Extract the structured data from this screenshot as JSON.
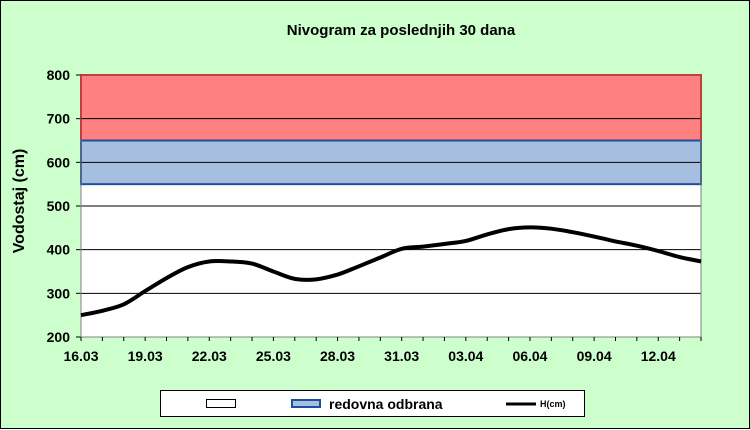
{
  "chart_data": {
    "type": "line",
    "title": "Nivogram za poslednjih 30 dana",
    "ylabel": "Vodostaj (cm)",
    "xlabel": "",
    "ylim": [
      200,
      800
    ],
    "yticks": [
      200,
      300,
      400,
      500,
      600,
      700,
      800
    ],
    "grid": true,
    "legend_position": "bottom",
    "x_tick_labels": [
      "16.03",
      "19.03",
      "22.03",
      "25.03",
      "28.03",
      "31.03",
      "03.04",
      "06.04",
      "09.04",
      "12.04"
    ],
    "x_count": 30,
    "bands": [
      {
        "name": "",
        "from": 650,
        "to": 800,
        "fill": "#ff8080",
        "stroke": "#ff0000"
      },
      {
        "name": "redovna odbrana",
        "from": 550,
        "to": 650,
        "fill": "#a6bfe0",
        "stroke": "#1f4e9c"
      }
    ],
    "series": [
      {
        "name": "H(cm)",
        "color": "#000000",
        "x": [
          "16.03",
          "17.03",
          "18.03",
          "19.03",
          "20.03",
          "21.03",
          "22.03",
          "23.03",
          "24.03",
          "25.03",
          "26.03",
          "27.03",
          "28.03",
          "29.03",
          "30.03",
          "31.03",
          "01.04",
          "02.04",
          "03.04",
          "04.04",
          "05.04",
          "06.04",
          "07.04",
          "08.04",
          "09.04",
          "10.04",
          "11.04",
          "12.04",
          "13.04",
          "14.04"
        ],
        "values": [
          250,
          260,
          275,
          305,
          335,
          360,
          373,
          373,
          368,
          350,
          333,
          332,
          343,
          362,
          382,
          402,
          407,
          413,
          420,
          435,
          447,
          451,
          448,
          440,
          430,
          419,
          409,
          397,
          383,
          373
        ]
      }
    ]
  },
  "legend": {
    "items": [
      {
        "label": "",
        "swatch_fill": "#ffffff",
        "swatch_stroke": "#000000"
      },
      {
        "label": "redovna odbrana",
        "swatch_fill": "#a6bfe0",
        "swatch_stroke": "#1f4e9c"
      },
      {
        "label": "H(cm)",
        "line_color": "#000000"
      }
    ]
  }
}
